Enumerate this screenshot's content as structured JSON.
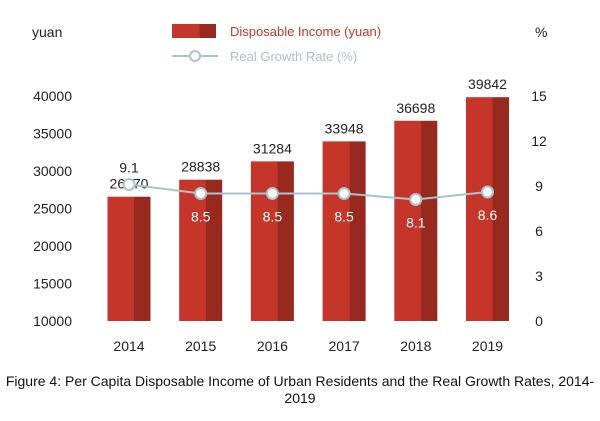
{
  "chart_data": {
    "type": "bar",
    "categories": [
      "2014",
      "2015",
      "2016",
      "2017",
      "2018",
      "2019"
    ],
    "series": [
      {
        "name": "Disposable Income (yuan)",
        "type": "bar",
        "axis": "left",
        "values": [
          26570,
          28838,
          31284,
          33948,
          36698,
          39842
        ],
        "color": "#c0392b"
      },
      {
        "name": "Real Growth Rate (%)",
        "type": "line",
        "axis": "right",
        "values": [
          9.1,
          8.5,
          8.5,
          8.5,
          8.1,
          8.6
        ],
        "color": "#a9c4cc"
      }
    ],
    "y_left": {
      "label": "yuan",
      "range": [
        10000,
        40000
      ],
      "ticks": [
        "10000",
        "15000",
        "20000",
        "25000",
        "30000",
        "35000",
        "40000"
      ]
    },
    "y_right": {
      "label": "%",
      "range": [
        0,
        15
      ],
      "ticks": [
        "0",
        "3",
        "6",
        "9",
        "12",
        "15"
      ]
    },
    "legend_position": "top",
    "grid": false,
    "caption": "Figure 4: Per Capita Disposable Income of Urban Residents and the Real Growth Rates, 2014-2019"
  }
}
